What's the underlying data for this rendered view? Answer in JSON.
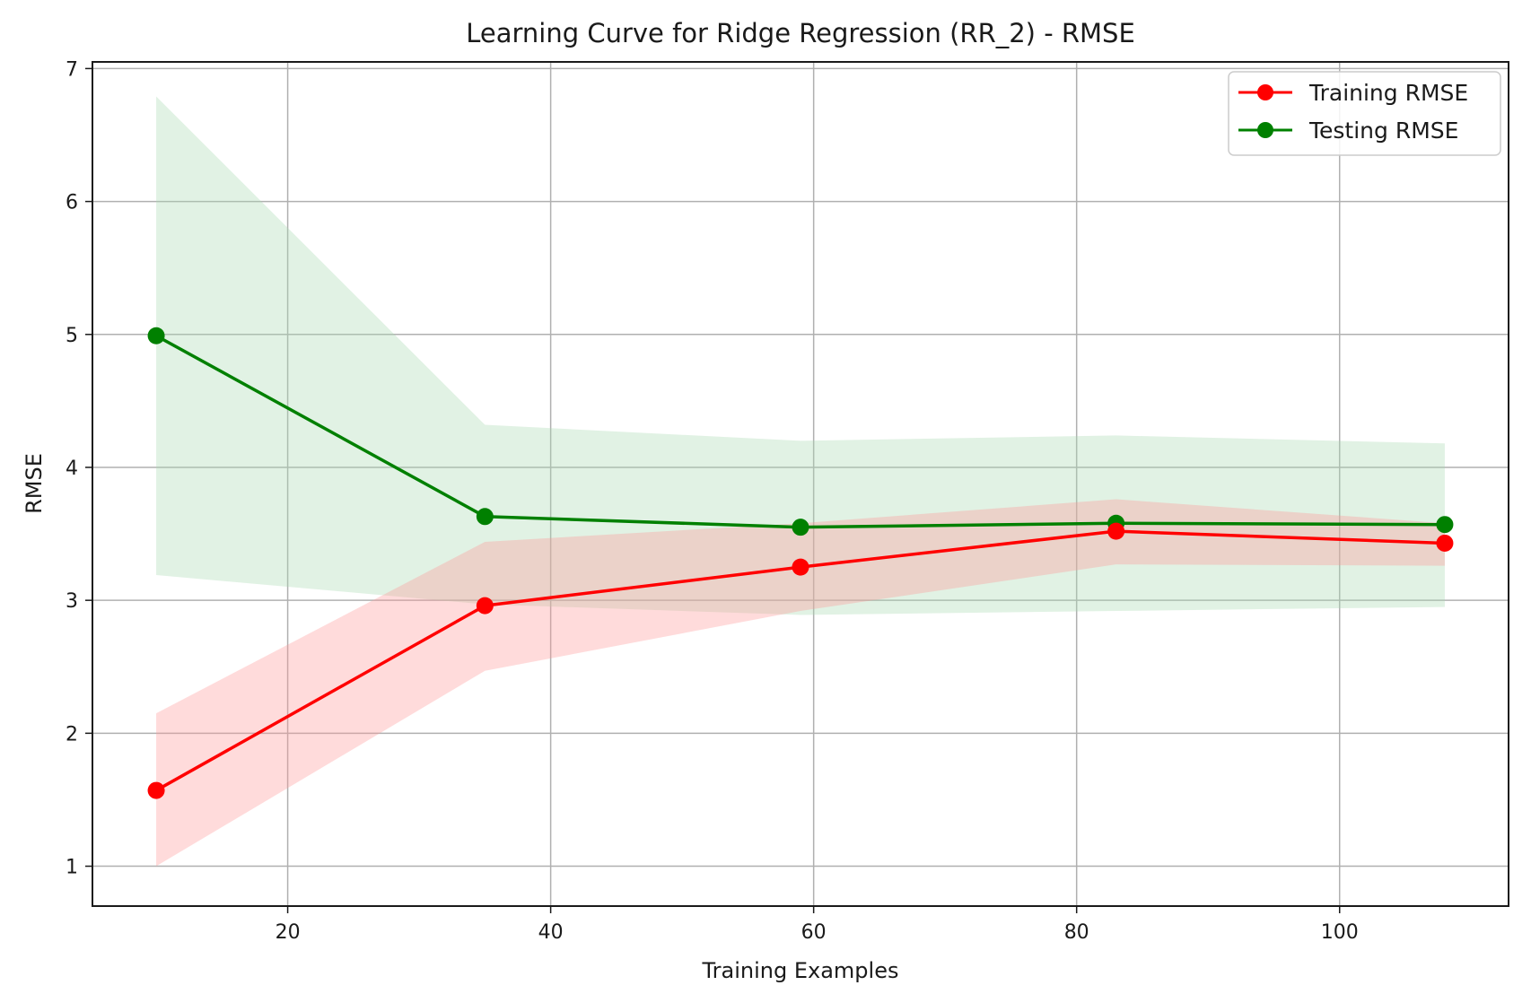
{
  "chart_data": {
    "type": "line",
    "title": "Learning Curve for Ridge Regression (RR_2) - RMSE",
    "xlabel": "Training Examples",
    "ylabel": "RMSE",
    "xlim": [
      5.15,
      112.85
    ],
    "ylim": [
      0.7,
      7.05
    ],
    "xticks": [
      20,
      40,
      60,
      80,
      100
    ],
    "yticks": [
      1,
      2,
      3,
      4,
      5,
      6,
      7
    ],
    "grid": true,
    "legend_position": "top-right",
    "x": [
      10,
      35,
      59,
      83,
      108
    ],
    "series": [
      {
        "name": "Training RMSE",
        "color": "#ff0000",
        "band_color": "#ff9999",
        "values": [
          1.57,
          2.96,
          3.25,
          3.52,
          3.43
        ],
        "band_upper": [
          2.15,
          3.44,
          3.58,
          3.76,
          3.58
        ],
        "band_lower": [
          1.0,
          2.47,
          2.92,
          3.27,
          3.26
        ]
      },
      {
        "name": "Testing RMSE",
        "color": "#008000",
        "band_color": "#a8d9b2",
        "values": [
          4.99,
          3.63,
          3.55,
          3.58,
          3.57
        ],
        "band_upper": [
          6.79,
          4.32,
          4.2,
          4.24,
          4.18
        ],
        "band_lower": [
          3.19,
          2.97,
          2.89,
          2.92,
          2.95
        ]
      }
    ]
  }
}
